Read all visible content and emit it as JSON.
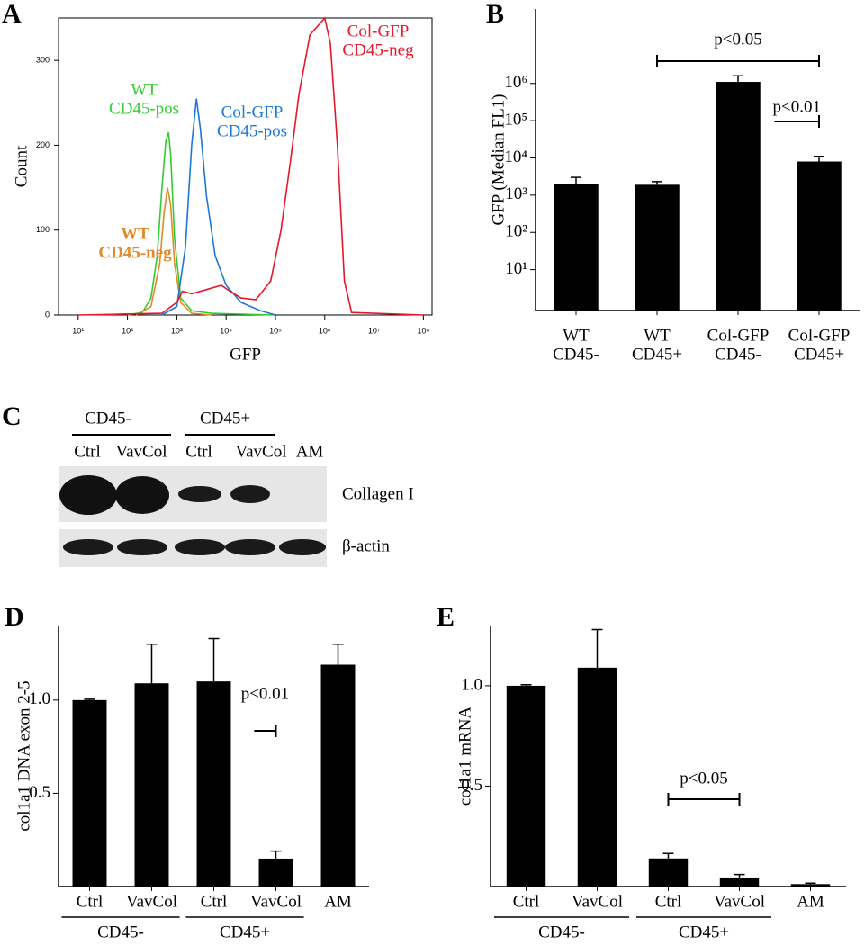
{
  "chart_data": [
    {
      "type": "line",
      "panel": "A",
      "xlabel": "GFP",
      "ylabel": "Count",
      "xlog": true,
      "xlim": [
        4,
        150000000
      ],
      "ylim": [
        0,
        350
      ],
      "xticks": [
        {
          "value": 10,
          "label": "10¹"
        },
        {
          "value": 100,
          "label": "10²"
        },
        {
          "value": 1000,
          "label": "10³"
        },
        {
          "value": 10000,
          "label": "10⁴"
        },
        {
          "value": 100000,
          "label": "10⁵"
        },
        {
          "value": 1000000,
          "label": "10⁶"
        },
        {
          "value": 10000000,
          "label": "10⁷"
        },
        {
          "value": 100000000,
          "label": "10⁸"
        }
      ],
      "yticks": [
        0,
        100,
        200,
        300
      ],
      "series": [
        {
          "name": "WT\nCD45-pos",
          "color": "#33cc33",
          "x": [
            100,
            200,
            300,
            400,
            500,
            600,
            680,
            750,
            900,
            1200,
            2000,
            5000,
            100000
          ],
          "values": [
            0,
            3,
            20,
            70,
            150,
            205,
            215,
            190,
            90,
            20,
            5,
            2,
            0
          ]
        },
        {
          "name": "WT\nCD45-neg",
          "color": "#e08a2c",
          "x": [
            150,
            300,
            450,
            550,
            650,
            750,
            900,
            1200,
            2000,
            5000
          ],
          "values": [
            0,
            10,
            60,
            120,
            150,
            130,
            60,
            15,
            2,
            0
          ]
        },
        {
          "name": "Col-GFP\nCD45-pos",
          "color": "#1f77d4",
          "x": [
            500,
            1000,
            1500,
            2000,
            2500,
            3000,
            4000,
            6000,
            10000,
            20000,
            50000,
            100000
          ],
          "values": [
            0,
            10,
            80,
            200,
            255,
            220,
            140,
            70,
            35,
            15,
            5,
            0
          ]
        },
        {
          "name": "Col-GFP\nCD45-neg",
          "color": "#e8162b",
          "x": [
            10,
            500,
            1000,
            1300,
            2000,
            4000,
            8000,
            12000,
            20000,
            40000,
            80000,
            130000,
            200000,
            300000,
            500000,
            1000000,
            1300000,
            1800000,
            2500000,
            3500000,
            100000000
          ],
          "values": [
            0,
            2,
            15,
            28,
            25,
            30,
            35,
            28,
            20,
            18,
            40,
            100,
            180,
            260,
            330,
            350,
            320,
            200,
            40,
            3,
            0
          ]
        }
      ]
    },
    {
      "type": "bar",
      "panel": "B",
      "ylabel": "GFP (Median FL1)",
      "ylog": true,
      "color": "#000000",
      "categories": [
        "WT\nCD45-",
        "WT\nCD45+",
        "Col-GFP\nCD45-",
        "Col-GFP\nCD45+"
      ],
      "values": [
        2000,
        1900,
        1100000,
        8000
      ],
      "errors": [
        1000,
        400,
        500000,
        3000
      ],
      "ylim": [
        0.8,
        100000000
      ],
      "yticks": [
        {
          "value": 10,
          "label": "10¹"
        },
        {
          "value": 100,
          "label": "10²"
        },
        {
          "value": 1000,
          "label": "10³"
        },
        {
          "value": 10000,
          "label": "10⁴"
        },
        {
          "value": 100000,
          "label": "10⁵"
        },
        {
          "value": 1000000,
          "label": "10⁶"
        }
      ],
      "annotations": [
        "p<0.05",
        "p<0.01"
      ]
    },
    {
      "type": "bar",
      "panel": "D",
      "ylabel": "col1a1 DNA exon 2-5",
      "color": "#000000",
      "categories": [
        "Ctrl",
        "VavCol",
        "Ctrl",
        "VavCol",
        "AM"
      ],
      "groups": [
        "CD45-",
        "CD45+"
      ],
      "values": [
        1.0,
        1.09,
        1.1,
        0.15,
        1.19
      ],
      "errors": [
        0.005,
        0.21,
        0.23,
        0.04,
        0.11
      ],
      "ylim": [
        0,
        1.4
      ],
      "yticks": [
        0.5,
        {
          "value": 1,
          "label": "1.0"
        }
      ],
      "annotations": [
        "p<0.01"
      ]
    },
    {
      "type": "bar",
      "panel": "E",
      "ylabel": "col1a1 mRNA",
      "color": "#000000",
      "categories": [
        "Ctrl",
        "VavCol",
        "Ctrl",
        "VavCol",
        "AM"
      ],
      "groups": [
        "CD45-",
        "CD45+"
      ],
      "values": [
        1.0,
        1.09,
        0.14,
        0.045,
        0.012
      ],
      "errors": [
        0.005,
        0.19,
        0.025,
        0.015,
        0.005
      ],
      "ylim": [
        0,
        1.3
      ],
      "yticks": [
        0.5,
        {
          "value": 1,
          "label": "1.0"
        }
      ],
      "annotations": [
        "p<0.05"
      ]
    }
  ],
  "blot": {
    "panel": "C",
    "groups": [
      "CD45-",
      "CD45+"
    ],
    "lanes": [
      "Ctrl",
      "VavCol",
      "Ctrl",
      "VavCol",
      "AM"
    ],
    "rows": [
      "Collagen I",
      "β-actin"
    ]
  }
}
